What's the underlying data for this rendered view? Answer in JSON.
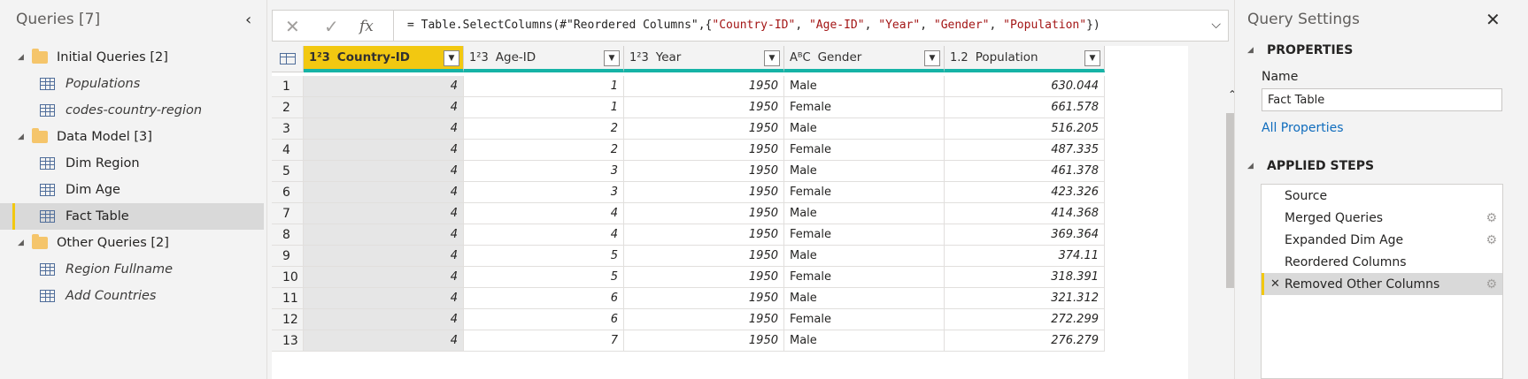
{
  "left_pane": {
    "title": "Queries [7]",
    "groups": [
      {
        "label": "Initial Queries [2]",
        "items": [
          {
            "label": "Populations",
            "italic": true
          },
          {
            "label": "codes-country-region",
            "italic": true
          }
        ]
      },
      {
        "label": "Data Model [3]",
        "items": [
          {
            "label": "Dim Region",
            "italic": false
          },
          {
            "label": "Dim Age",
            "italic": false
          },
          {
            "label": "Fact Table",
            "italic": false,
            "selected": true
          }
        ]
      },
      {
        "label": "Other Queries [2]",
        "items": [
          {
            "label": "Region Fullname",
            "italic": true
          },
          {
            "label": "Add Countries",
            "italic": true
          }
        ]
      }
    ]
  },
  "formula_bar": {
    "cancel_icon": "✕",
    "confirm_icon": "✓",
    "fx_label": "fx",
    "formula_prefix": "= Table.SelectColumns(#",
    "formula_parts": [
      {
        "t": "\"Reordered Columns\"",
        "s": false
      },
      {
        "t": ",{",
        "s": false
      },
      {
        "t": "\"Country-ID\"",
        "s": true
      },
      {
        "t": ", ",
        "s": false
      },
      {
        "t": "\"Age-ID\"",
        "s": true
      },
      {
        "t": ", ",
        "s": false
      },
      {
        "t": "\"Year\"",
        "s": true
      },
      {
        "t": ", ",
        "s": false
      },
      {
        "t": "\"Gender\"",
        "s": true
      },
      {
        "t": ", ",
        "s": false
      },
      {
        "t": "\"Population\"",
        "s": true
      },
      {
        "t": "})",
        "s": false
      }
    ]
  },
  "grid": {
    "columns": [
      {
        "type": "1²3",
        "name": "Country-ID",
        "align": "num",
        "selected": true
      },
      {
        "type": "1²3",
        "name": "Age-ID",
        "align": "num",
        "selected": false
      },
      {
        "type": "1²3",
        "name": "Year",
        "align": "num",
        "selected": false
      },
      {
        "type": "AᴮC",
        "name": "Gender",
        "align": "txt",
        "selected": false
      },
      {
        "type": "1.2",
        "name": "Population",
        "align": "num",
        "selected": false
      }
    ],
    "rows": [
      [
        "1",
        "4",
        "1",
        "1950",
        "Male",
        "630.044"
      ],
      [
        "2",
        "4",
        "1",
        "1950",
        "Female",
        "661.578"
      ],
      [
        "3",
        "4",
        "2",
        "1950",
        "Male",
        "516.205"
      ],
      [
        "4",
        "4",
        "2",
        "1950",
        "Female",
        "487.335"
      ],
      [
        "5",
        "4",
        "3",
        "1950",
        "Male",
        "461.378"
      ],
      [
        "6",
        "4",
        "3",
        "1950",
        "Female",
        "423.326"
      ],
      [
        "7",
        "4",
        "4",
        "1950",
        "Male",
        "414.368"
      ],
      [
        "8",
        "4",
        "4",
        "1950",
        "Female",
        "369.364"
      ],
      [
        "9",
        "4",
        "5",
        "1950",
        "Male",
        "374.11"
      ],
      [
        "10",
        "4",
        "5",
        "1950",
        "Female",
        "318.391"
      ],
      [
        "11",
        "4",
        "6",
        "1950",
        "Male",
        "321.312"
      ],
      [
        "12",
        "4",
        "6",
        "1950",
        "Female",
        "272.299"
      ],
      [
        "13",
        "4",
        "7",
        "1950",
        "Male",
        "276.279"
      ]
    ]
  },
  "settings": {
    "title": "Query Settings",
    "properties_heading": "PROPERTIES",
    "name_label": "Name",
    "name_value": "Fact Table",
    "all_properties": "All Properties",
    "steps_heading": "APPLIED STEPS",
    "steps": [
      {
        "label": "Source",
        "gear": false,
        "active": false
      },
      {
        "label": "Merged Queries",
        "gear": true,
        "active": false
      },
      {
        "label": "Expanded Dim Age",
        "gear": true,
        "active": false
      },
      {
        "label": "Reordered Columns",
        "gear": false,
        "active": false
      },
      {
        "label": "Removed Other Columns",
        "gear": true,
        "active": true
      }
    ]
  },
  "colors": {
    "accent": "#f2c811",
    "header_underline": "#16b3a6",
    "link": "#0f6cbd"
  }
}
